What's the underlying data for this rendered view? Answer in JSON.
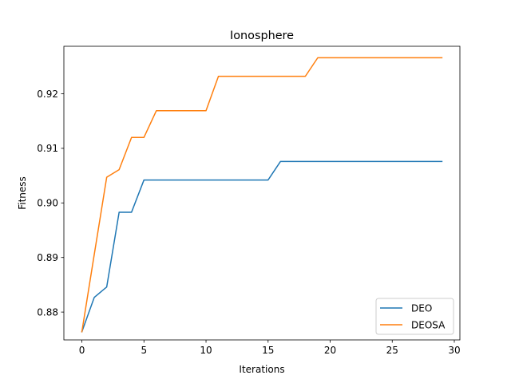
{
  "chart_data": {
    "type": "line",
    "title": "Ionosphere",
    "xlabel": "Iterations",
    "ylabel": "Fitness",
    "xlim": [
      -1.45,
      30.45
    ],
    "ylim": [
      0.8749,
      0.9287
    ],
    "xticks": [
      0,
      5,
      10,
      15,
      20,
      25,
      30
    ],
    "xtick_labels": [
      "0",
      "5",
      "10",
      "15",
      "20",
      "25",
      "30"
    ],
    "yticks": [
      0.88,
      0.89,
      0.9,
      0.91,
      0.92
    ],
    "ytick_labels": [
      "0.88",
      "0.89",
      "0.90",
      "0.91",
      "0.92"
    ],
    "grid": false,
    "legend_position": "lower-right",
    "x": [
      0,
      1,
      2,
      3,
      4,
      5,
      6,
      7,
      8,
      9,
      10,
      11,
      12,
      13,
      14,
      15,
      16,
      17,
      18,
      19,
      20,
      21,
      22,
      23,
      24,
      25,
      26,
      27,
      28,
      29
    ],
    "series": [
      {
        "name": "DEO",
        "color": "#1f77b4",
        "values": [
          0.8764,
          0.8827,
          0.8846,
          0.8983,
          0.8983,
          0.9042,
          0.9042,
          0.9042,
          0.9042,
          0.9042,
          0.9042,
          0.9042,
          0.9042,
          0.9042,
          0.9042,
          0.9042,
          0.9076,
          0.9076,
          0.9076,
          0.9076,
          0.9076,
          0.9076,
          0.9076,
          0.9076,
          0.9076,
          0.9076,
          0.9076,
          0.9076,
          0.9076,
          0.9076
        ]
      },
      {
        "name": "DEOSA",
        "color": "#ff7f0e",
        "values": [
          0.8764,
          0.8906,
          0.9047,
          0.9061,
          0.912,
          0.912,
          0.9169,
          0.9169,
          0.9169,
          0.9169,
          0.9169,
          0.9232,
          0.9232,
          0.9232,
          0.9232,
          0.9232,
          0.9232,
          0.9232,
          0.9232,
          0.9266,
          0.9266,
          0.9266,
          0.9266,
          0.9266,
          0.9266,
          0.9266,
          0.9266,
          0.9266,
          0.9266,
          0.9266
        ]
      }
    ]
  }
}
